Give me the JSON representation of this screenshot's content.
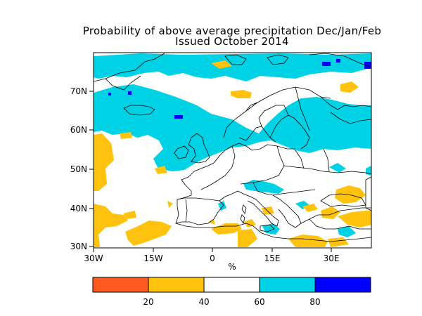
{
  "title": "Probability of above average precipitation Dec/Jan/Feb",
  "subtitle": "Issued October 2014",
  "map": {
    "lat_ticks": [
      "70N",
      "60N",
      "50N",
      "40N",
      "30N"
    ],
    "lon_ticks": [
      "30W",
      "15W",
      "0",
      "15E",
      "30E"
    ],
    "unit_label": "%"
  },
  "legend": {
    "bins": [
      {
        "from": 0,
        "to": 20,
        "color": "#ff5a1f"
      },
      {
        "from": 20,
        "to": 40,
        "color": "#ffc20e"
      },
      {
        "from": 40,
        "to": 60,
        "color": "#ffffff"
      },
      {
        "from": 60,
        "to": 80,
        "color": "#00d2e6"
      },
      {
        "from": 80,
        "to": 100,
        "color": "#0000ff"
      }
    ],
    "tick_labels": [
      "20",
      "40",
      "60",
      "80"
    ]
  },
  "colors": {
    "low": "#ffc20e",
    "high": "#00d2e6",
    "very_high": "#0000ff",
    "coast": "#000000"
  }
}
